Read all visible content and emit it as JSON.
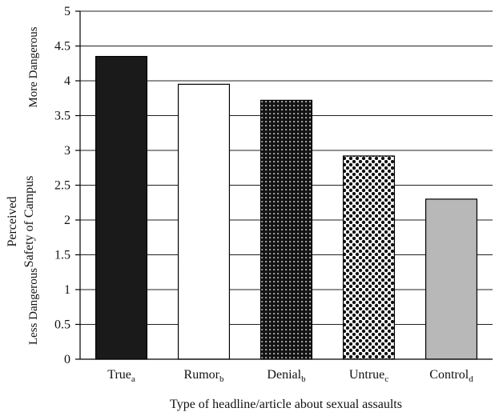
{
  "chart_data": {
    "type": "bar",
    "categories": [
      {
        "label": "True",
        "sub": "a",
        "value": 4.35,
        "fill": "solid-black"
      },
      {
        "label": "Rumor",
        "sub": "b",
        "value": 3.95,
        "fill": "white"
      },
      {
        "label": "Denial",
        "sub": "b",
        "value": 3.72,
        "fill": "dense-dots"
      },
      {
        "label": "Untrue",
        "sub": "c",
        "value": 2.92,
        "fill": "checker"
      },
      {
        "label": "Control",
        "sub": "d",
        "value": 2.3,
        "fill": "light-gray"
      }
    ],
    "ylim": [
      0,
      5
    ],
    "yticks": [
      "0",
      "0.5",
      "1",
      "1.5",
      "2",
      "2.5",
      "3",
      "3.5",
      "4",
      "4.5",
      "5"
    ],
    "xlabel": "Type of headline/article about sexual assaults",
    "ylabel_line1": "Perceived",
    "ylabel_line2": "Safety of Campus",
    "ylabel_top": "More Dangerous",
    "ylabel_bottom": "Less Dangerous",
    "grid": true,
    "colors": {
      "solid-black": "#1a1a1a",
      "white": "#ffffff",
      "light-gray": "#b8b8b8"
    }
  }
}
